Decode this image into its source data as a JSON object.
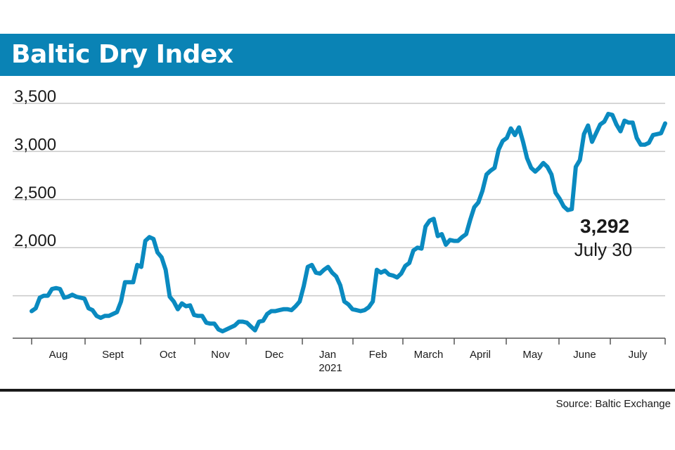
{
  "title": "Baltic Dry Index",
  "source": "Source: Baltic Exchange",
  "colors": {
    "accent": "#0a83b5",
    "line": "#0a8ac0",
    "grid": "#c8c8c8",
    "text": "#1a1a1a"
  },
  "chart_data": {
    "type": "line",
    "title": "Baltic Dry Index",
    "xlabel": "",
    "ylabel": "",
    "y_ticks": [
      "3,500",
      "3,000",
      "2,500",
      "2,000"
    ],
    "y_tick_values": [
      3500,
      3000,
      2500,
      2000
    ],
    "ylim": [
      1000,
      3500
    ],
    "x_month_labels": [
      "Aug",
      "Sept",
      "Oct",
      "Nov",
      "Dec",
      "Jan",
      "Feb",
      "March",
      "April",
      "May",
      "June",
      "July"
    ],
    "year_label": "2021",
    "grid": true,
    "annotation": {
      "value": "3,292",
      "date": "July 30"
    },
    "series": [
      {
        "values": [
          1340,
          1370,
          1480,
          1500,
          1500,
          1570,
          1580,
          1570,
          1480,
          1490,
          1510,
          1490,
          1480,
          1470,
          1370,
          1350,
          1290,
          1270,
          1290,
          1290,
          1310,
          1330,
          1440,
          1640,
          1640,
          1640,
          1820,
          1800,
          2070,
          2110,
          2090,
          1950,
          1900,
          1770,
          1490,
          1440,
          1360,
          1420,
          1390,
          1400,
          1300,
          1290,
          1290,
          1220,
          1210,
          1210,
          1150,
          1130,
          1150,
          1170,
          1190,
          1230,
          1230,
          1220,
          1180,
          1140,
          1230,
          1240,
          1310,
          1340,
          1340,
          1350,
          1360,
          1360,
          1350,
          1390,
          1440,
          1600,
          1800,
          1820,
          1740,
          1730,
          1770,
          1800,
          1740,
          1700,
          1610,
          1440,
          1410,
          1360,
          1350,
          1340,
          1350,
          1380,
          1440,
          1770,
          1740,
          1760,
          1720,
          1710,
          1690,
          1730,
          1810,
          1840,
          1970,
          2000,
          1990,
          2220,
          2280,
          2300,
          2120,
          2140,
          2030,
          2080,
          2070,
          2070,
          2110,
          2140,
          2290,
          2420,
          2470,
          2590,
          2760,
          2800,
          2830,
          3020,
          3110,
          3140,
          3240,
          3170,
          3250,
          3100,
          2930,
          2830,
          2790,
          2830,
          2880,
          2840,
          2760,
          2570,
          2510,
          2430,
          2390,
          2400,
          2840,
          2910,
          3180,
          3270,
          3100,
          3190,
          3280,
          3310,
          3390,
          3380,
          3280,
          3210,
          3320,
          3300,
          3300,
          3140,
          3070,
          3070,
          3090,
          3170,
          3180,
          3190,
          3292
        ]
      }
    ]
  }
}
